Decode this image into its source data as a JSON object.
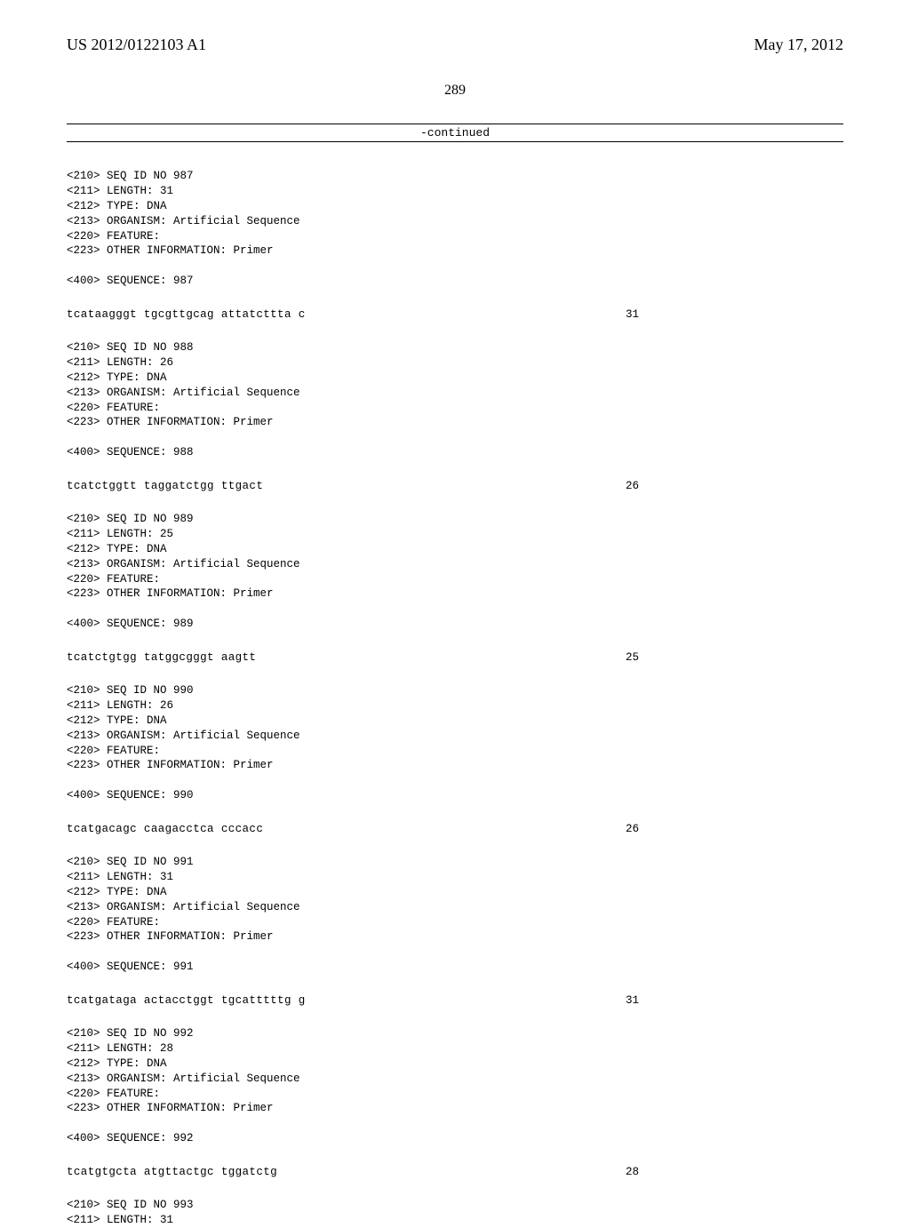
{
  "header": {
    "publication_number": "US 2012/0122103 A1",
    "date": "May 17, 2012"
  },
  "page_number": "289",
  "continued_label": "-continued",
  "entries": [
    {
      "seq_id": "987",
      "length": "31",
      "type": "DNA",
      "organism": "Artificial Sequence",
      "feature": "",
      "other_info": "Primer",
      "sequence_label": "987",
      "sequence": "tcataagggt tgcgttgcag attatcttta c",
      "count": "31"
    },
    {
      "seq_id": "988",
      "length": "26",
      "type": "DNA",
      "organism": "Artificial Sequence",
      "feature": "",
      "other_info": "Primer",
      "sequence_label": "988",
      "sequence": "tcatctggtt taggatctgg ttgact",
      "count": "26"
    },
    {
      "seq_id": "989",
      "length": "25",
      "type": "DNA",
      "organism": "Artificial Sequence",
      "feature": "",
      "other_info": "Primer",
      "sequence_label": "989",
      "sequence": "tcatctgtgg tatggcgggt aagtt",
      "count": "25"
    },
    {
      "seq_id": "990",
      "length": "26",
      "type": "DNA",
      "organism": "Artificial Sequence",
      "feature": "",
      "other_info": "Primer",
      "sequence_label": "990",
      "sequence": "tcatgacagc caagacctca cccacc",
      "count": "26"
    },
    {
      "seq_id": "991",
      "length": "31",
      "type": "DNA",
      "organism": "Artificial Sequence",
      "feature": "",
      "other_info": "Primer",
      "sequence_label": "991",
      "sequence": "tcatgataga actacctggt tgcatttttg g",
      "count": "31"
    },
    {
      "seq_id": "992",
      "length": "28",
      "type": "DNA",
      "organism": "Artificial Sequence",
      "feature": "",
      "other_info": "Primer",
      "sequence_label": "992",
      "sequence": "tcatgtgcta atgttactgc tggatctg",
      "count": "28"
    }
  ],
  "trailing": {
    "seq_id": "993",
    "length": "31"
  },
  "labels": {
    "seq_id_no": "<210> SEQ ID NO ",
    "length": "<211> LENGTH: ",
    "type": "<212> TYPE: ",
    "organism": "<213> ORGANISM: ",
    "feature": "<220> FEATURE:",
    "other_info": "<223> OTHER INFORMATION: ",
    "sequence": "<400> SEQUENCE: "
  }
}
